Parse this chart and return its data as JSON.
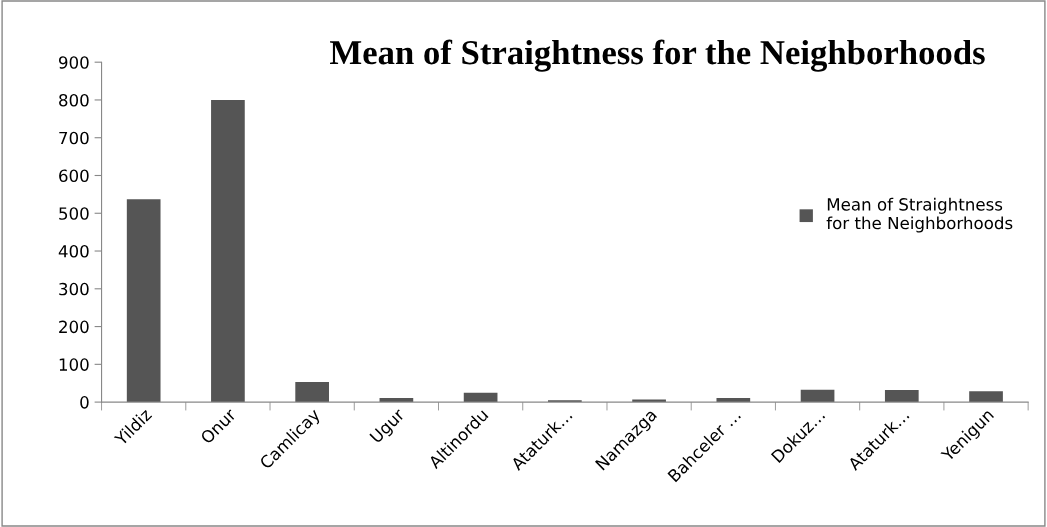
{
  "chart_data": {
    "type": "bar",
    "title": "Mean of Straightness for the Neighborhoods",
    "categories": [
      "Yildiz",
      "Onur",
      "Camlicay",
      "Ugur",
      "Altinordu",
      "Ataturk…",
      "Namazga",
      "Bahceler …",
      "Dokuz…",
      "Ataturk…",
      "Yenigun"
    ],
    "series": [
      {
        "name": "Mean of Straightness\nfor the Neighborhoods",
        "color": "#555555",
        "values": [
          537,
          800,
          53,
          11,
          25,
          5,
          7,
          11,
          33,
          32,
          29
        ]
      }
    ],
    "ylim": [
      0,
      900
    ],
    "yticks": [
      0,
      100,
      200,
      300,
      400,
      500,
      600,
      700,
      800,
      900
    ],
    "grid": false,
    "legend": "right"
  }
}
